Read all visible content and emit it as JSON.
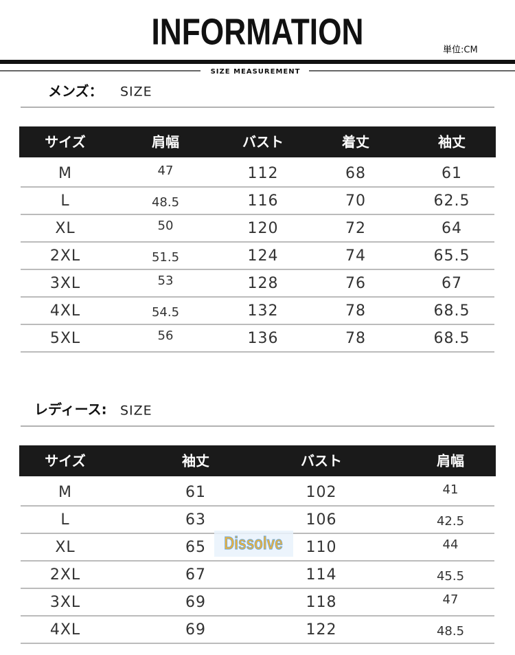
{
  "header": {
    "title": "INFORMATION",
    "unit": "単位:CM",
    "subtitle": "SIZE MEASUREMENT"
  },
  "mens": {
    "label": "メンズ：",
    "size_label": "SIZE",
    "table": {
      "columns": [
        "サイズ",
        "肩幅",
        "バスト",
        "着丈",
        "袖丈"
      ],
      "rows": [
        [
          "M",
          "47",
          "112",
          "68",
          "61"
        ],
        [
          "L",
          "48.5",
          "116",
          "70",
          "62.5"
        ],
        [
          "XL",
          "50",
          "120",
          "72",
          "64"
        ],
        [
          "2XL",
          "51.5",
          "124",
          "74",
          "65.5"
        ],
        [
          "3XL",
          "53",
          "128",
          "76",
          "67"
        ],
        [
          "4XL",
          "54.5",
          "132",
          "78",
          "68.5"
        ],
        [
          "5XL",
          "56",
          "136",
          "78",
          "68.5"
        ]
      ]
    }
  },
  "ladies": {
    "label": "レディース:",
    "size_label": "SIZE",
    "table": {
      "columns": [
        "サイズ",
        "袖丈",
        "バスト",
        "肩幅"
      ],
      "rows": [
        [
          "M",
          "61",
          "102",
          "41"
        ],
        [
          "L",
          "63",
          "106",
          "42.5"
        ],
        [
          "XL",
          "65",
          "110",
          "44"
        ],
        [
          "2XL",
          "67",
          "114",
          "45.5"
        ],
        [
          "3XL",
          "69",
          "118",
          "47"
        ],
        [
          "4XL",
          "69",
          "122",
          "48.5"
        ]
      ]
    }
  },
  "watermark": "Dissolve"
}
